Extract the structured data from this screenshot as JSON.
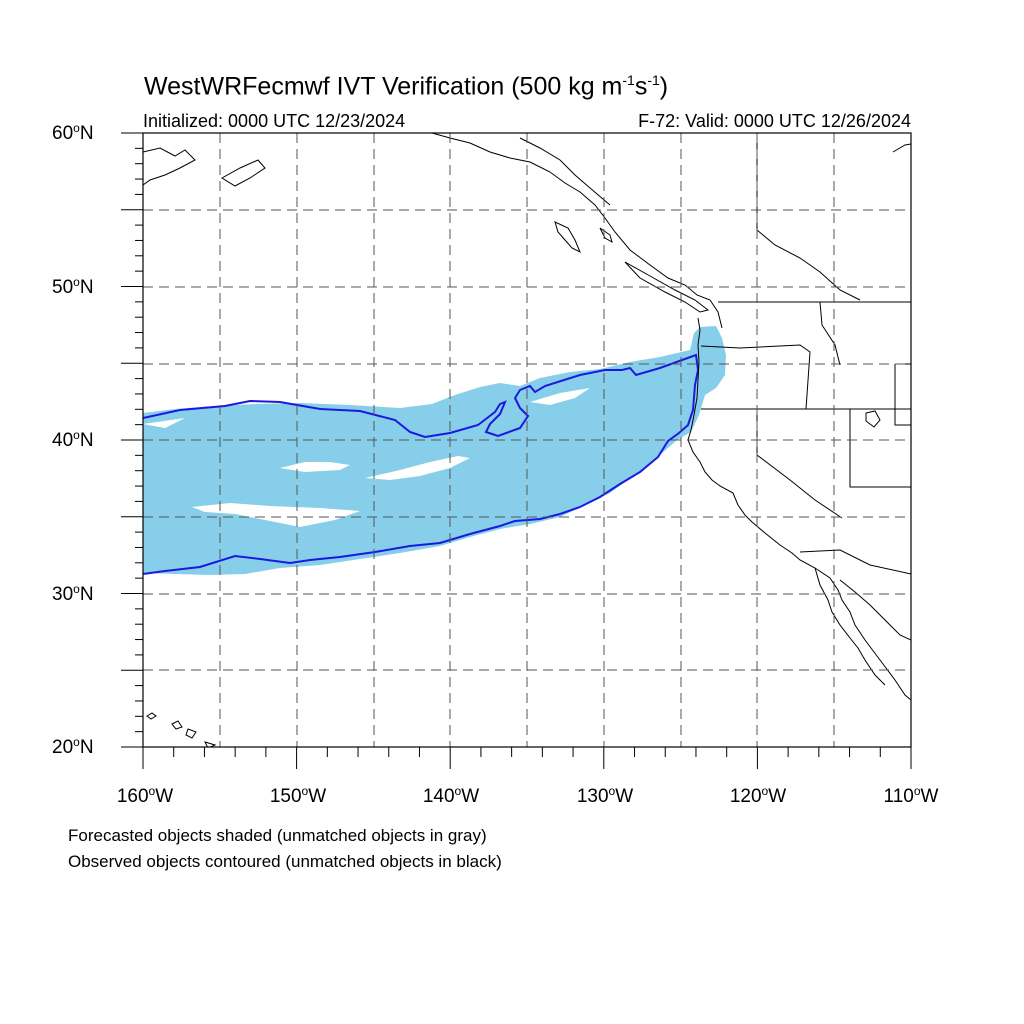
{
  "header": {
    "title_main": "WestWRFecmwf IVT Verification (500 kg m",
    "title_exp1": "-1",
    "title_mid": "s",
    "title_exp2": "-1",
    "title_end": ")",
    "initialized": "Initialized: 0000 UTC 12/23/2024",
    "valid": "F-72: Valid: 0000 UTC 12/26/2024"
  },
  "axes": {
    "lat_labels": [
      "60",
      "50",
      "40",
      "30",
      "20"
    ],
    "lat_suffix": "N",
    "lon_labels": [
      "160",
      "150",
      "140",
      "130",
      "120",
      "110"
    ],
    "lon_suffix": "W",
    "degree_symbol": "o"
  },
  "map": {
    "lon_range": [
      -160,
      -110
    ],
    "lat_range": [
      20,
      60
    ],
    "forecast_fill_color": "#87ceeb",
    "observed_contour_color": "#1010e0",
    "coastline_color": "#000000",
    "grid_style": "dashed",
    "grid_spacing_deg": 5
  },
  "notes": {
    "line1": "Forecasted objects shaded (unmatched objects in gray)",
    "line2": "Observed objects contoured (unmatched objects in black)"
  }
}
